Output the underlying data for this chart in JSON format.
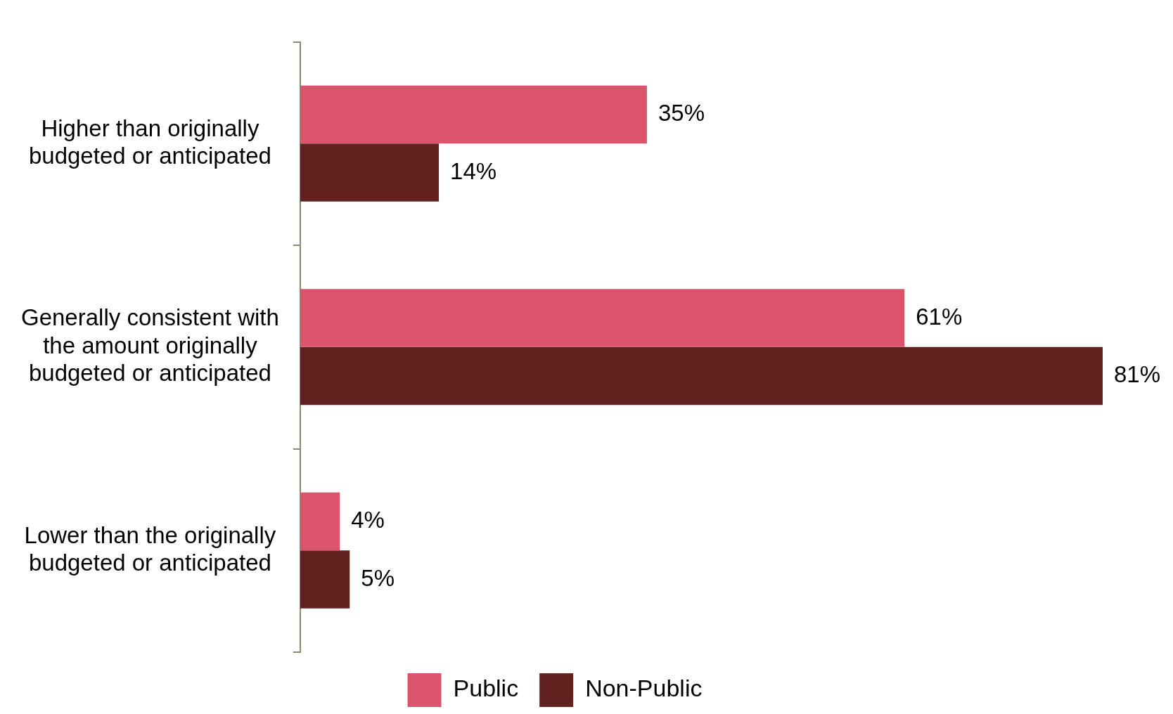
{
  "chart_data": {
    "type": "bar",
    "orientation": "horizontal",
    "categories": [
      "Higher than originally budgeted or anticipated",
      "Generally consistent with the amount originally budgeted or anticipated",
      "Lower than the originally budgeted or anticipated"
    ],
    "series": [
      {
        "name": "Public",
        "color": "#dc546b",
        "values": [
          35,
          61,
          4
        ],
        "value_labels": [
          "35%",
          "61%",
          "4%"
        ]
      },
      {
        "name": "Non-Public",
        "color": "#612220",
        "values": [
          14,
          81,
          5
        ],
        "value_labels": [
          "14%",
          "81%",
          "5%"
        ]
      }
    ],
    "grid": false,
    "legend": "bottom",
    "tick_labels": "y"
  }
}
